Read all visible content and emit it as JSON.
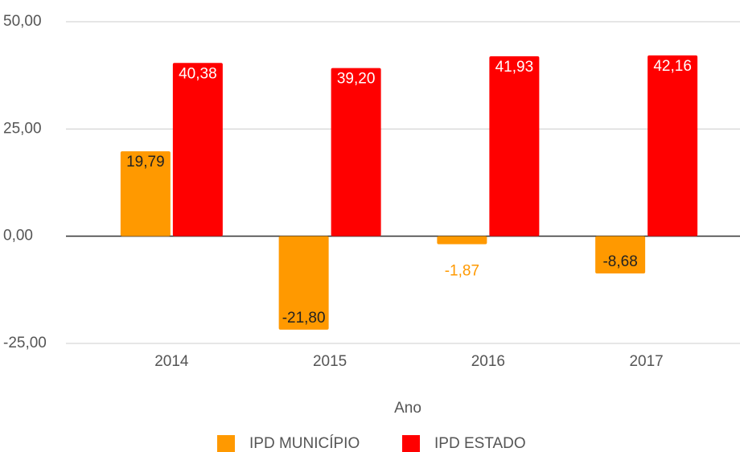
{
  "chart_data": {
    "type": "bar",
    "categories": [
      "2014",
      "2015",
      "2016",
      "2017"
    ],
    "series": [
      {
        "name": "IPD MUNICÍPIO",
        "color": "#ff9900",
        "values": [
          19.79,
          -21.8,
          -1.87,
          -8.68
        ],
        "value_labels": [
          "19,79",
          "-21,80",
          "-1,87",
          "-8,68"
        ]
      },
      {
        "name": "IPD ESTADO",
        "color": "#ff0000",
        "values": [
          40.38,
          39.2,
          41.93,
          42.16
        ],
        "value_labels": [
          "40,38",
          "39,20",
          "41,93",
          "42,16"
        ]
      }
    ],
    "ylim": [
      -25,
      50
    ],
    "yticks": [
      {
        "value": -25,
        "label": "-25,00"
      },
      {
        "value": 0,
        "label": "0,00"
      },
      {
        "value": 25,
        "label": "25,00"
      },
      {
        "value": 50,
        "label": "50,00"
      }
    ],
    "xlabel": "Ano",
    "grid": true,
    "legend": "bottom"
  }
}
